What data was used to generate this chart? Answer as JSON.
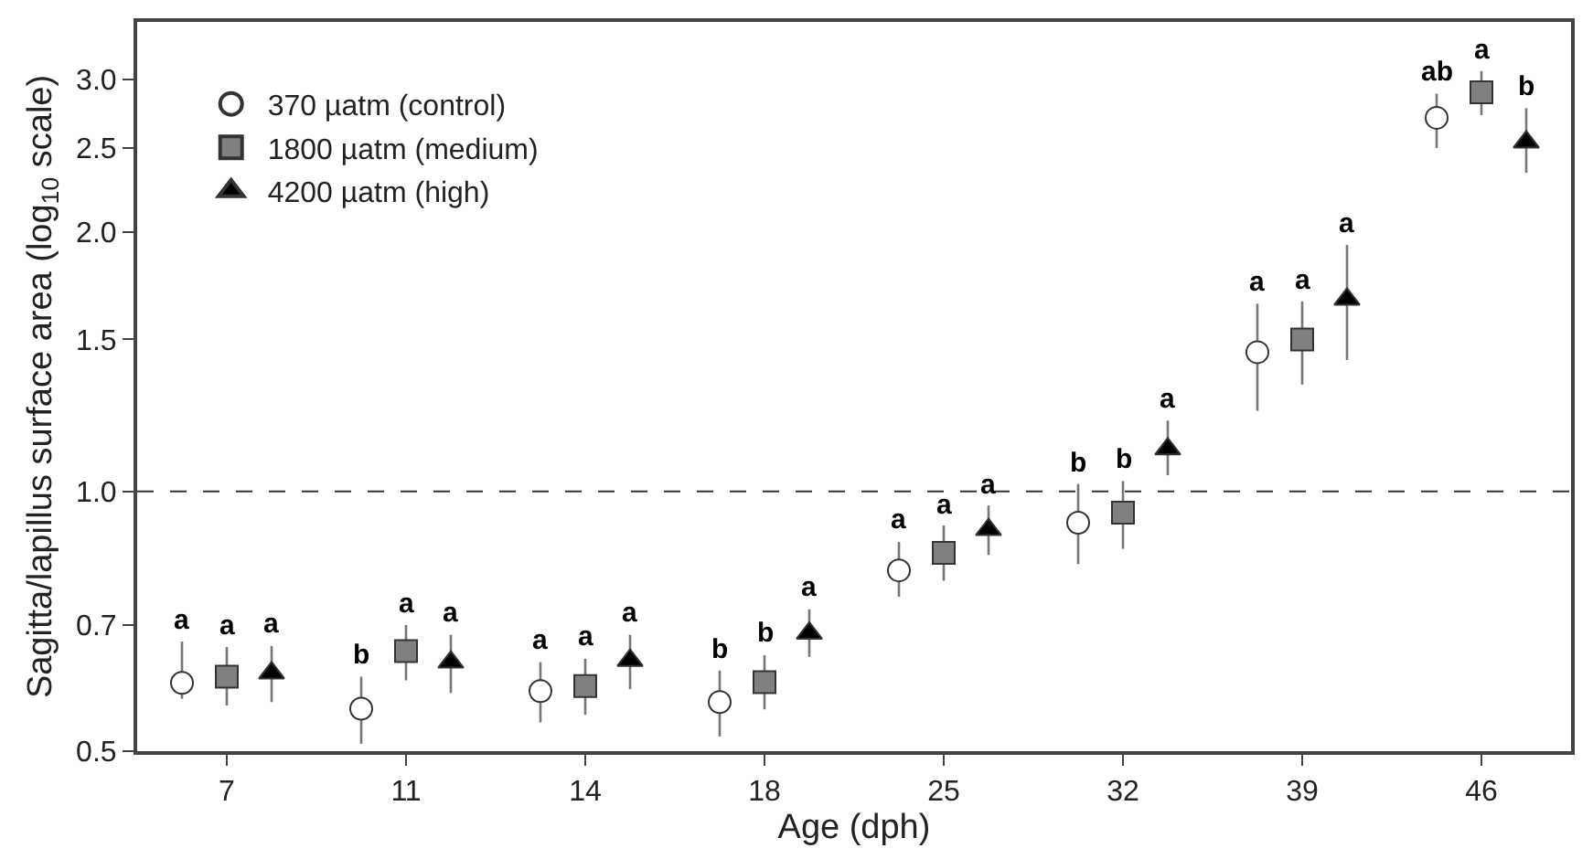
{
  "chart_data": {
    "type": "scatter",
    "xlabel": "Age (dph)",
    "ylabel": "Sagitta/lapillus surface area (log$_{10}$ scale)",
    "categories": [
      "7",
      "11",
      "14",
      "18",
      "25",
      "32",
      "39",
      "46"
    ],
    "log": "y",
    "ylim": [
      0.5,
      3.5
    ],
    "yticks": [
      0.5,
      0.7,
      {
        "value": 1.0,
        "label": "1.0"
      },
      1.5,
      {
        "value": 2.0,
        "label": "2.0"
      },
      2.5,
      {
        "value": 3.0,
        "label": "3.0"
      }
    ],
    "legend": "top left",
    "ref_lines": [
      {
        "axis": "y",
        "value": 1.0,
        "line_style": "dashed",
        "color": "#333333"
      }
    ],
    "series": [
      {
        "name": "370 µatm (control)",
        "color": "#ffffff",
        "marker": "circle",
        "values": [
          0.6,
          0.56,
          0.587,
          0.57,
          0.81,
          0.92,
          1.45,
          2.71
        ],
        "errors": [
          [
            0.575,
            0.67
          ],
          [
            0.51,
            0.61
          ],
          [
            0.54,
            0.634
          ],
          [
            0.52,
            0.62
          ],
          [
            0.755,
            0.874
          ],
          [
            0.824,
            1.02
          ],
          [
            1.24,
            1.65
          ],
          [
            2.5,
            2.89
          ]
        ],
        "value_labels": [
          "a",
          "b",
          "a",
          "b",
          "a",
          "b",
          "a",
          "ab"
        ]
      },
      {
        "name": "1800 µatm (medium)",
        "color": "#808080",
        "marker": "square",
        "values": [
          0.61,
          0.653,
          0.595,
          0.601,
          0.849,
          0.945,
          1.5,
          2.9
        ],
        "errors": [
          [
            0.565,
            0.66
          ],
          [
            0.604,
            0.7
          ],
          [
            0.551,
            0.64
          ],
          [
            0.559,
            0.646
          ],
          [
            0.788,
            0.913
          ],
          [
            0.858,
            1.028
          ],
          [
            1.33,
            1.66
          ],
          [
            2.73,
            3.07
          ]
        ],
        "value_labels": [
          "a",
          "a",
          "a",
          "b",
          "a",
          "b",
          "a",
          "a"
        ]
      },
      {
        "name": "4200 µatm (high)",
        "color": "#000000",
        "marker": "triangle",
        "values": [
          0.616,
          0.634,
          0.637,
          0.685,
          0.903,
          1.12,
          1.67,
          2.54
        ],
        "errors": [
          [
            0.57,
            0.662
          ],
          [
            0.584,
            0.682
          ],
          [
            0.59,
            0.682
          ],
          [
            0.643,
            0.73
          ],
          [
            0.844,
            0.963
          ],
          [
            1.044,
            1.208
          ],
          [
            1.42,
            1.93
          ],
          [
            2.34,
            2.78
          ]
        ],
        "value_labels": [
          "a",
          "a",
          "a",
          "a",
          "a",
          "a",
          "a",
          "b"
        ]
      }
    ]
  }
}
